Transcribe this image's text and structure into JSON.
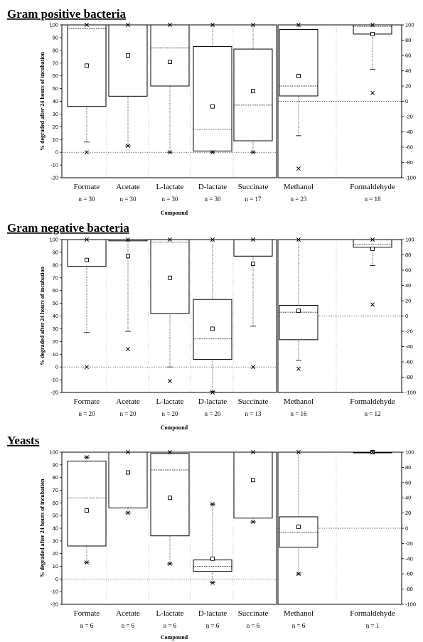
{
  "chart_data": [
    {
      "type": "box",
      "title": "Gram positive bacteria",
      "ylabel": "% degraded after 24 hours of incubation",
      "xlabel": "Compound",
      "left_axis": {
        "ylim": [
          -20,
          100
        ],
        "ticks": [
          -20,
          -10,
          0,
          10,
          20,
          30,
          40,
          50,
          60,
          70,
          80,
          90,
          100
        ]
      },
      "right_axis": {
        "ylim": [
          -100,
          100
        ],
        "ticks": [
          -100,
          -80,
          -60,
          -40,
          -20,
          0,
          20,
          40,
          60,
          80,
          100
        ]
      },
      "left_groups": [
        {
          "name": "Formate",
          "n": "n = 30",
          "q1": 36,
          "median": 97,
          "q3": 100,
          "mean": 68,
          "whisker_low": 8,
          "whisker_high": 100,
          "extreme_low": 0,
          "extreme_high": 100
        },
        {
          "name": "Acetate",
          "n": "n = 30",
          "q1": 44,
          "median": 100,
          "q3": 100,
          "mean": 76,
          "whisker_low": 5,
          "whisker_high": 100,
          "extreme_low": 5,
          "extreme_high": 100
        },
        {
          "name": "L-lactate",
          "n": "n = 30",
          "q1": 52,
          "median": 82,
          "q3": 100,
          "mean": 71,
          "whisker_low": 0,
          "whisker_high": 100,
          "extreme_low": 0,
          "extreme_high": 100
        },
        {
          "name": "D-lactate",
          "n": "n = 30",
          "q1": 1,
          "median": 18,
          "q3": 83,
          "mean": 36,
          "whisker_low": 0,
          "whisker_high": 100,
          "extreme_low": 0,
          "extreme_high": 100
        },
        {
          "name": "Succinate",
          "n": "n = 17",
          "q1": 9,
          "median": 37,
          "q3": 81,
          "mean": 48,
          "whisker_low": 0,
          "whisker_high": 100,
          "extreme_low": 0,
          "extreme_high": 100
        }
      ],
      "right_groups": [
        {
          "name": "Methanol",
          "n": "n = 23",
          "q1": 7,
          "median": 20,
          "q3": 94,
          "mean": 33,
          "whisker_low": -45,
          "whisker_high": 100,
          "extreme_low": -88,
          "extreme_high": 100
        },
        {
          "name": "Formaldehyde",
          "n": "n = 18",
          "q1": 88,
          "median": 98,
          "q3": 100,
          "mean": 88,
          "whisker_low": 42,
          "whisker_high": 100,
          "extreme_low": 11,
          "extreme_high": 100
        }
      ]
    },
    {
      "type": "box",
      "title": "Gram negative bacteria",
      "ylabel": "% degraded after 24 hours of incubation",
      "xlabel": "Compound",
      "left_axis": {
        "ylim": [
          -20,
          100
        ],
        "ticks": [
          -20,
          -10,
          0,
          10,
          20,
          30,
          40,
          50,
          60,
          70,
          80,
          90,
          100
        ]
      },
      "right_axis": {
        "ylim": [
          -100,
          100
        ],
        "ticks": [
          -100,
          -80,
          -60,
          -40,
          -20,
          0,
          20,
          40,
          60,
          80,
          100
        ]
      },
      "left_groups": [
        {
          "name": "Formate",
          "n": "n = 20",
          "q1": 79,
          "median": 100,
          "q3": 100,
          "mean": 84,
          "whisker_low": 27,
          "whisker_high": 100,
          "extreme_low": 0,
          "extreme_high": 100
        },
        {
          "name": "Acetate",
          "n": "n = 20",
          "q1": 99,
          "median": 100,
          "q3": 100,
          "mean": 87,
          "whisker_low": 28,
          "whisker_high": 100,
          "extreme_low": 14,
          "extreme_high": 100
        },
        {
          "name": "L-lactate",
          "n": "n = 20",
          "q1": 42,
          "median": 98,
          "q3": 100,
          "mean": 70,
          "whisker_low": 0,
          "whisker_high": 100,
          "extreme_low": -11,
          "extreme_high": 100
        },
        {
          "name": "D-lactate",
          "n": "n = 20",
          "q1": 6,
          "median": 22,
          "q3": 53,
          "mean": 30,
          "whisker_low": -19,
          "whisker_high": 100,
          "extreme_low": -20,
          "extreme_high": 100
        },
        {
          "name": "Succinate",
          "n": "n = 13",
          "q1": 87,
          "median": 100,
          "q3": 100,
          "mean": 81,
          "whisker_low": 32,
          "whisker_high": 100,
          "extreme_low": 0,
          "extreme_high": 100
        }
      ],
      "right_groups": [
        {
          "name": "Methanol",
          "n": "n = 16",
          "q1": -31,
          "median": 5,
          "q3": 14,
          "mean": 7,
          "whisker_low": -58,
          "whisker_high": 100,
          "extreme_low": -69,
          "extreme_high": 100
        },
        {
          "name": "Formaldehyde",
          "n": "n = 12",
          "q1": 90,
          "median": 94,
          "q3": 100,
          "mean": 88,
          "whisker_low": 66,
          "whisker_high": 100,
          "extreme_low": 15,
          "extreme_high": 100
        }
      ]
    },
    {
      "type": "box",
      "title": "Yeasts",
      "ylabel": "% degraded after 24 hours of incubation",
      "xlabel": "Compound",
      "left_axis": {
        "ylim": [
          -20,
          100
        ],
        "ticks": [
          -20,
          -10,
          0,
          10,
          20,
          30,
          40,
          50,
          60,
          70,
          80,
          90,
          100
        ]
      },
      "right_axis": {
        "ylim": [
          -100,
          100
        ],
        "ticks": [
          -100,
          -80,
          -60,
          -40,
          -20,
          0,
          20,
          40,
          60,
          80,
          100
        ]
      },
      "left_groups": [
        {
          "name": "Formate",
          "n": "n = 6",
          "q1": 26,
          "median": 64,
          "q3": 93,
          "mean": 54,
          "whisker_low": 13,
          "whisker_high": 96,
          "extreme_low": 13,
          "extreme_high": 96
        },
        {
          "name": "Acetate",
          "n": "n = 6",
          "q1": 56,
          "median": 100,
          "q3": 100,
          "mean": 84,
          "whisker_low": 52,
          "whisker_high": 100,
          "extreme_low": 52,
          "extreme_high": 100
        },
        {
          "name": "L-lactate",
          "n": "n = 6",
          "q1": 34,
          "median": 86,
          "q3": 99,
          "mean": 64,
          "whisker_low": 12,
          "whisker_high": 100,
          "extreme_low": 12,
          "extreme_high": 100
        },
        {
          "name": "D-lactate",
          "n": "n = 6",
          "q1": 6,
          "median": 10,
          "q3": 15,
          "mean": 16,
          "whisker_low": -3,
          "whisker_high": 59,
          "extreme_low": -3,
          "extreme_high": 59
        },
        {
          "name": "Succinate",
          "n": "n = 6",
          "q1": 48,
          "median": 100,
          "q3": 100,
          "mean": 78,
          "whisker_low": 45,
          "whisker_high": 100,
          "extreme_low": 45,
          "extreme_high": 100
        }
      ],
      "right_groups": [
        {
          "name": "Methanol",
          "n": "n = 6",
          "q1": -25,
          "median": -5,
          "q3": 15,
          "mean": 2,
          "whisker_low": -60,
          "whisker_high": 100,
          "extreme_low": -60,
          "extreme_high": 100
        },
        {
          "name": "Formaldehyde",
          "n": "n = 1",
          "q1": 100,
          "median": 100,
          "q3": 100,
          "mean": 100,
          "whisker_low": 100,
          "whisker_high": 100,
          "extreme_low": 100,
          "extreme_high": 100
        }
      ]
    }
  ]
}
